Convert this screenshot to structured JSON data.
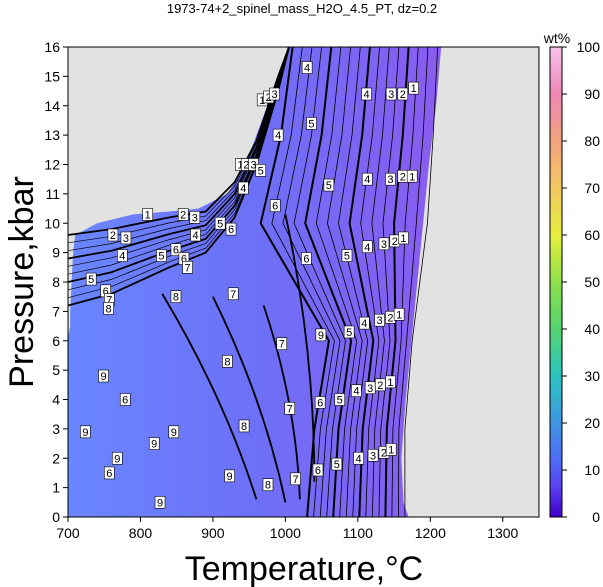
{
  "chart_data": {
    "type": "contour",
    "title": "1973-74+2_spinel_mass_H2O_4.5_PT, dz=0.2",
    "xlabel": "Temperature,°C",
    "ylabel": "Pressure,kbar",
    "xlim": [
      700,
      1350
    ],
    "ylim": [
      0,
      16
    ],
    "x_ticks": [
      700,
      800,
      900,
      1000,
      1100,
      1200,
      1300
    ],
    "y_ticks": [
      0,
      1,
      2,
      3,
      4,
      5,
      6,
      7,
      8,
      9,
      10,
      11,
      12,
      13,
      14,
      15,
      16
    ],
    "colorbar": {
      "label": "wt%",
      "range": [
        0,
        100
      ],
      "ticks": [
        0,
        10,
        20,
        30,
        40,
        50,
        60,
        70,
        80,
        90,
        100
      ]
    },
    "contour_labels": [
      {
        "label": "1",
        "x": 968,
        "y": 14.2
      },
      {
        "label": "2",
        "x": 977,
        "y": 14.3
      },
      {
        "label": "3",
        "x": 985,
        "y": 14.4
      },
      {
        "label": "4",
        "x": 1030,
        "y": 15.3
      },
      {
        "label": "4",
        "x": 990,
        "y": 13.0
      },
      {
        "label": "5",
        "x": 1036,
        "y": 13.4
      },
      {
        "label": "1",
        "x": 938,
        "y": 12.0
      },
      {
        "label": "2",
        "x": 946,
        "y": 12.0
      },
      {
        "label": "3",
        "x": 956,
        "y": 12.0
      },
      {
        "label": "5",
        "x": 966,
        "y": 11.8
      },
      {
        "label": "4",
        "x": 942,
        "y": 11.2
      },
      {
        "label": "1",
        "x": 810,
        "y": 10.3
      },
      {
        "label": "2",
        "x": 859,
        "y": 10.3
      },
      {
        "label": "3",
        "x": 875,
        "y": 10.2
      },
      {
        "label": "5",
        "x": 910,
        "y": 10.0
      },
      {
        "label": "6",
        "x": 925,
        "y": 9.8
      },
      {
        "label": "4",
        "x": 876,
        "y": 9.6
      },
      {
        "label": "6",
        "x": 986,
        "y": 10.6
      },
      {
        "label": "5",
        "x": 1060,
        "y": 11.3
      },
      {
        "label": "2",
        "x": 762,
        "y": 9.6
      },
      {
        "label": "3",
        "x": 780,
        "y": 9.5
      },
      {
        "label": "4",
        "x": 775,
        "y": 8.9
      },
      {
        "label": "6",
        "x": 1029,
        "y": 8.8
      },
      {
        "label": "5",
        "x": 1085,
        "y": 8.9
      },
      {
        "label": "6",
        "x": 849,
        "y": 9.1
      },
      {
        "label": "5",
        "x": 829,
        "y": 8.9
      },
      {
        "label": "6",
        "x": 860,
        "y": 8.8
      },
      {
        "label": "7",
        "x": 865,
        "y": 8.5
      },
      {
        "label": "5",
        "x": 732,
        "y": 8.1
      },
      {
        "label": "6",
        "x": 752,
        "y": 7.7
      },
      {
        "label": "7",
        "x": 757,
        "y": 7.4
      },
      {
        "label": "8",
        "x": 756,
        "y": 7.1
      },
      {
        "label": "8",
        "x": 849,
        "y": 7.5
      },
      {
        "label": "7",
        "x": 928,
        "y": 7.6
      },
      {
        "label": "9",
        "x": 1049,
        "y": 6.2
      },
      {
        "label": "5",
        "x": 1088,
        "y": 6.3
      },
      {
        "label": "7",
        "x": 995,
        "y": 5.9
      },
      {
        "label": "8",
        "x": 920,
        "y": 5.3
      },
      {
        "label": "9",
        "x": 749,
        "y": 4.8
      },
      {
        "label": "6",
        "x": 779,
        "y": 4.0
      },
      {
        "label": "6",
        "x": 1048,
        "y": 3.9
      },
      {
        "label": "5",
        "x": 1075,
        "y": 4.0
      },
      {
        "label": "7",
        "x": 1006,
        "y": 3.7
      },
      {
        "label": "9",
        "x": 724,
        "y": 2.9
      },
      {
        "label": "9",
        "x": 846,
        "y": 2.9
      },
      {
        "label": "9",
        "x": 819,
        "y": 2.5
      },
      {
        "label": "8",
        "x": 943,
        "y": 3.1
      },
      {
        "label": "9",
        "x": 768,
        "y": 2.0
      },
      {
        "label": "6",
        "x": 757,
        "y": 1.5
      },
      {
        "label": "6",
        "x": 1045,
        "y": 1.6
      },
      {
        "label": "5",
        "x": 1071,
        "y": 1.8
      },
      {
        "label": "7",
        "x": 1014,
        "y": 1.3
      },
      {
        "label": "9",
        "x": 923,
        "y": 1.4
      },
      {
        "label": "8",
        "x": 976,
        "y": 1.1
      },
      {
        "label": "9",
        "x": 827,
        "y": 0.5
      },
      {
        "label": "4",
        "x": 1112,
        "y": 14.4
      },
      {
        "label": "3",
        "x": 1146,
        "y": 14.4
      },
      {
        "label": "2",
        "x": 1162,
        "y": 14.4
      },
      {
        "label": "1",
        "x": 1177,
        "y": 14.6
      },
      {
        "label": "4",
        "x": 1113,
        "y": 11.5
      },
      {
        "label": "3",
        "x": 1145,
        "y": 11.5
      },
      {
        "label": "2",
        "x": 1162,
        "y": 11.6
      },
      {
        "label": "1",
        "x": 1175,
        "y": 11.6
      },
      {
        "label": "4",
        "x": 1113,
        "y": 9.2
      },
      {
        "label": "3",
        "x": 1136,
        "y": 9.3
      },
      {
        "label": "2",
        "x": 1151,
        "y": 9.4
      },
      {
        "label": "1",
        "x": 1163,
        "y": 9.5
      },
      {
        "label": "4",
        "x": 1109,
        "y": 6.6
      },
      {
        "label": "3",
        "x": 1130,
        "y": 6.7
      },
      {
        "label": "2",
        "x": 1145,
        "y": 6.8
      },
      {
        "label": "1",
        "x": 1157,
        "y": 6.9
      },
      {
        "label": "4",
        "x": 1098,
        "y": 4.3
      },
      {
        "label": "3",
        "x": 1117,
        "y": 4.4
      },
      {
        "label": "2",
        "x": 1131,
        "y": 4.5
      },
      {
        "label": "1",
        "x": 1145,
        "y": 4.6
      },
      {
        "label": "4",
        "x": 1101,
        "y": 2.0
      },
      {
        "label": "3",
        "x": 1121,
        "y": 2.1
      },
      {
        "label": "2",
        "x": 1136,
        "y": 2.2
      },
      {
        "label": "1",
        "x": 1146,
        "y": 2.3
      }
    ]
  }
}
